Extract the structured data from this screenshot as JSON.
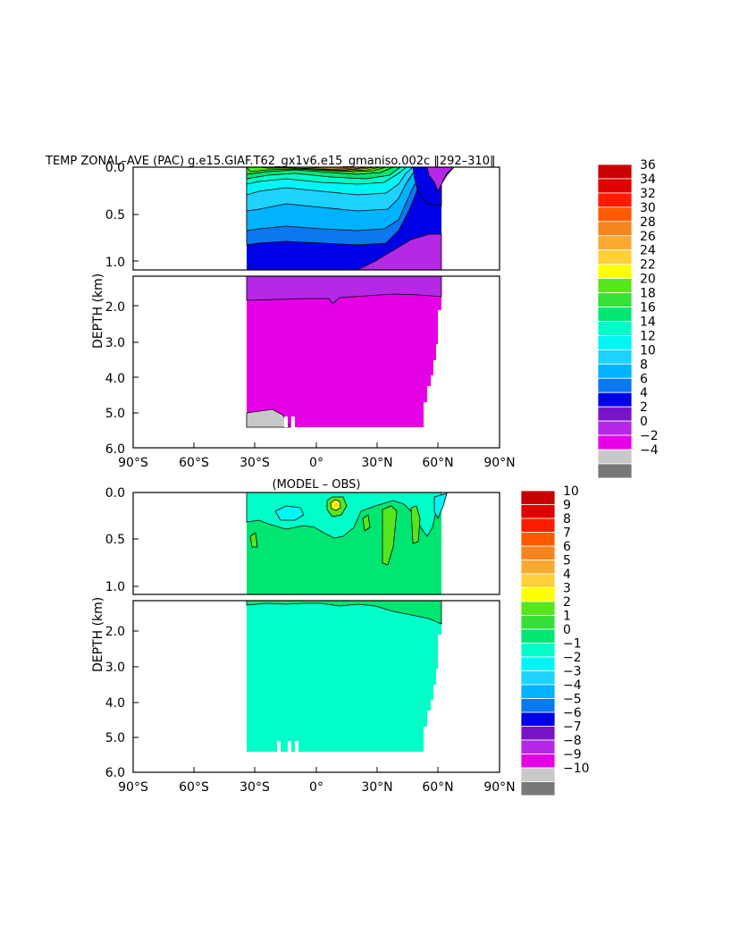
{
  "chart_data": [
    {
      "type": "heatmap",
      "title": "TEMP ZONAL–AVE (PAC) g.e15.GIAF.T62_gx1v6.e15_gmaniso.002c ‖292–310‖",
      "ylabel": "DEPTH (km)",
      "xlabel": "",
      "x_ticks": [
        "90°S",
        "60°S",
        "30°S",
        "0°",
        "30°N",
        "60°N",
        "90°N"
      ],
      "x_range": [
        -90,
        90
      ],
      "y_ticks_upper": [
        "0.0",
        "0.5",
        "1.0"
      ],
      "y_ticks_lower": [
        "2.0",
        "3.0",
        "4.0",
        "5.0",
        "6.0"
      ],
      "y_range_upper_km": [
        0,
        1.1
      ],
      "y_range_lower_km": [
        1.1,
        6.0
      ],
      "data_extent": {
        "lat_min": -33,
        "lat_max": 62,
        "max_depth_km": 5.4
      },
      "colorbar": {
        "labels": [
          "36",
          "34",
          "32",
          "30",
          "28",
          "26",
          "24",
          "22",
          "20",
          "18",
          "16",
          "14",
          "12",
          "10",
          "8",
          "6",
          "4",
          "2",
          "0",
          "−2",
          "−4"
        ],
        "colors": [
          "#c80000",
          "#e00000",
          "#ff1a00",
          "#ff5a00",
          "#f5851e",
          "#f9a832",
          "#ffcf38",
          "#ffff00",
          "#55e61e",
          "#36e038",
          "#00e673",
          "#00ffc8",
          "#00f5f5",
          "#1ed2ff",
          "#00b2ff",
          "#0a78f0",
          "#0000e6",
          "#7814c8",
          "#b428e6",
          "#e600e6",
          "#c8c8c8",
          "#787878"
        ]
      },
      "surface_profile": [
        {
          "lat": -33,
          "upper_0": 0.02,
          "t20_depth_km": 0.08,
          "t12_depth_km": 0.4,
          "t8_depth_km": 0.55,
          "t4_depth_km": 1.1
        },
        {
          "lat": 0,
          "t20_depth_km": 0.12,
          "t12_depth_km": 0.3,
          "t8_depth_km": 0.5,
          "t4_depth_km": 1.1
        },
        {
          "lat": 30,
          "t20_depth_km": 0.06,
          "t12_depth_km": 0.25,
          "t8_depth_km": 0.4,
          "t4_depth_km": 0.95
        },
        {
          "lat": 50,
          "t12_depth_km": 0.02,
          "t8_depth_km": 0.1,
          "t4_depth_km": 0.75
        },
        {
          "lat": 62,
          "t8_depth_km": 0.0,
          "t4_depth_km": 0.7
        }
      ]
    },
    {
      "type": "heatmap",
      "title": "(MODEL – OBS)",
      "ylabel": "DEPTH (km)",
      "xlabel": "",
      "x_ticks": [
        "90°S",
        "60°S",
        "30°S",
        "0°",
        "30°N",
        "60°N",
        "90°N"
      ],
      "x_range": [
        -90,
        90
      ],
      "y_ticks_upper": [
        "0.0",
        "0.5",
        "1.0"
      ],
      "y_ticks_lower": [
        "2.0",
        "3.0",
        "4.0",
        "5.0",
        "6.0"
      ],
      "y_range_upper_km": [
        0,
        1.1
      ],
      "y_range_lower_km": [
        1.1,
        6.0
      ],
      "data_extent": {
        "lat_min": -33,
        "lat_max": 62,
        "max_depth_km": 5.4
      },
      "colorbar": {
        "labels": [
          "10",
          "9",
          "8",
          "7",
          "6",
          "5",
          "4",
          "3",
          "2",
          "1",
          "0",
          "−1",
          "−2",
          "−3",
          "−4",
          "−5",
          "−6",
          "−7",
          "−8",
          "−9",
          "−10"
        ],
        "colors": [
          "#c80000",
          "#e00000",
          "#ff1a00",
          "#ff5a00",
          "#f5851e",
          "#f9a832",
          "#ffcf38",
          "#ffff00",
          "#55e61e",
          "#36e038",
          "#00e673",
          "#00ffc8",
          "#00f5f5",
          "#1ed2ff",
          "#00b2ff",
          "#0a78f0",
          "#0000e6",
          "#7814c8",
          "#b428e6",
          "#e600e6",
          "#c8c8c8",
          "#787878"
        ]
      },
      "regions": [
        {
          "value_range": [
            0,
            1
          ],
          "depth_km": [
            0,
            1.3
          ],
          "description": "upper ocean"
        },
        {
          "value_range": [
            -1,
            0
          ],
          "depth_km": [
            1.3,
            5.4
          ],
          "description": "deep ocean"
        },
        {
          "value_range": [
            1,
            3
          ],
          "lat": 9,
          "depth_km": 0.15,
          "description": "warm anomaly"
        }
      ]
    }
  ]
}
